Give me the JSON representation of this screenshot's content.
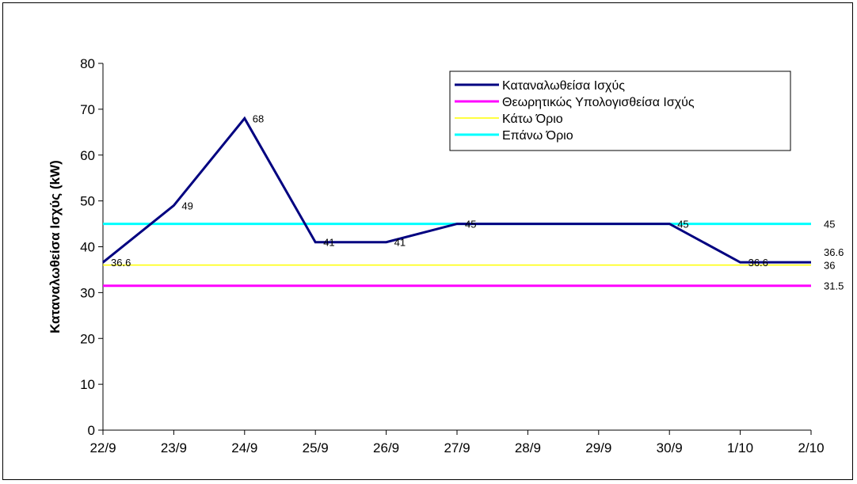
{
  "chart_data": {
    "type": "line",
    "title": "",
    "xlabel": "",
    "ylabel": "Καταναλωθείσα Ισχύς (kW)",
    "ylim": [
      0,
      80
    ],
    "yticks": [
      0,
      10,
      20,
      30,
      40,
      50,
      60,
      70,
      80
    ],
    "grid": false,
    "legend_position": "top-right",
    "categories": [
      "22/9",
      "23/9",
      "24/9",
      "25/9",
      "26/9",
      "27/9",
      "28/9",
      "29/9",
      "30/9",
      "1/10",
      "2/10"
    ],
    "series": [
      {
        "name": "Καταναλωθείσα Ισχύς",
        "color": "#000080",
        "values": [
          36.6,
          49,
          68,
          41,
          41,
          45,
          45,
          45,
          45,
          36.6,
          36.6
        ],
        "labels": [
          "36.6",
          "49",
          "68",
          "41",
          "41",
          "45",
          "",
          "",
          "45",
          "36.6",
          "36.6"
        ]
      },
      {
        "name": "Θεωρητικώς Υπολογισθείσα Ισχύς",
        "color": "#ff00ff",
        "values": [
          31.5,
          31.5,
          31.5,
          31.5,
          31.5,
          31.5,
          31.5,
          31.5,
          31.5,
          31.5,
          31.5
        ],
        "labels": [
          "",
          "",
          "",
          "",
          "",
          "",
          "",
          "",
          "",
          "",
          "31.5"
        ]
      },
      {
        "name": "Κάτω Όριο",
        "color": "#ffff00",
        "values": [
          36,
          36,
          36,
          36,
          36,
          36,
          36,
          36,
          36,
          36,
          36
        ],
        "labels": [
          "",
          "",
          "",
          "",
          "",
          "",
          "",
          "",
          "",
          "",
          "36"
        ]
      },
      {
        "name": "Επάνω Όριο",
        "color": "#00ffff",
        "values": [
          45,
          45,
          45,
          45,
          45,
          45,
          45,
          45,
          45,
          45,
          45
        ],
        "labels": [
          "",
          "",
          "",
          "",
          "",
          "",
          "",
          "",
          "",
          "",
          "45"
        ]
      }
    ]
  }
}
